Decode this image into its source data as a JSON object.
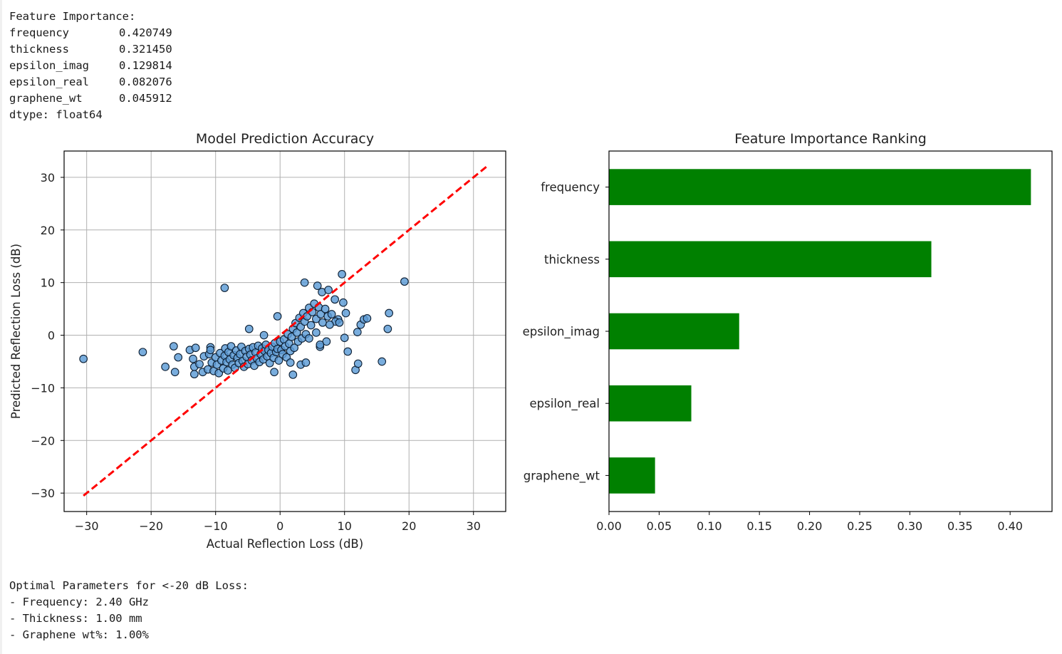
{
  "console_top": {
    "header": "Feature Importance:",
    "rows": [
      {
        "name": "frequency",
        "value": "0.420749"
      },
      {
        "name": "thickness",
        "value": "0.321450"
      },
      {
        "name": "epsilon_imag",
        "value": "0.129814"
      },
      {
        "name": "epsilon_real",
        "value": "0.082076"
      },
      {
        "name": "graphene_wt",
        "value": "0.045912"
      }
    ],
    "dtype": "dtype: float64"
  },
  "console_bottom": {
    "header": "Optimal Parameters for <-20 dB Loss:",
    "lines": [
      "- Frequency: 2.40 GHz",
      "- Thickness: 1.00 mm",
      "- Graphene wt%: 1.00%"
    ]
  },
  "colors": {
    "scatter_fill": "#5b9bd5",
    "scatter_edge": "#0d1f33",
    "diagonal": "#ff0000",
    "bar": "#008000",
    "grid": "#b0b0b0"
  },
  "chart_data": [
    {
      "type": "scatter",
      "title": "Model Prediction Accuracy",
      "xlabel": "Actual Reflection Loss (dB)",
      "ylabel": "Predicted Reflection Loss (dB)",
      "xlim": [
        -33.5,
        35
      ],
      "ylim": [
        -33.5,
        35
      ],
      "xticks": [
        -30,
        -20,
        -10,
        0,
        10,
        20,
        30
      ],
      "yticks": [
        -30,
        -20,
        -10,
        0,
        10,
        20,
        30
      ],
      "tick_labels": [
        "−30",
        "−20",
        "−10",
        "0",
        "10",
        "20",
        "30"
      ],
      "grid": true,
      "reference_line": {
        "from": [
          -30.5,
          -30.5
        ],
        "to": [
          32,
          32
        ],
        "style": "dashed"
      },
      "points": [
        [
          -30.5,
          -4.5
        ],
        [
          -21.3,
          -3.2
        ],
        [
          -17.8,
          -6
        ],
        [
          -16.5,
          -2.1
        ],
        [
          -16.3,
          -7
        ],
        [
          -15.8,
          -4.2
        ],
        [
          -14,
          -2.8
        ],
        [
          -13.5,
          -4.5
        ],
        [
          -13.3,
          -6
        ],
        [
          -13.3,
          -7.4
        ],
        [
          -13.1,
          -2.4
        ],
        [
          -12.5,
          -5.5
        ],
        [
          -12,
          -7
        ],
        [
          -11.8,
          -4
        ],
        [
          -11.2,
          -6.5
        ],
        [
          -11,
          -3.6
        ],
        [
          -10.6,
          -5.2
        ],
        [
          -10.3,
          -6.8
        ],
        [
          -10,
          -4.2
        ],
        [
          -10.8,
          -2.3
        ],
        [
          -10.8,
          -2.8
        ],
        [
          -9.8,
          -5.6
        ],
        [
          -9.5,
          -7.2
        ],
        [
          -9.3,
          -3.4
        ],
        [
          -9.1,
          -4.8
        ],
        [
          -8.8,
          -6.3
        ],
        [
          -8.6,
          -3.9
        ],
        [
          -8.5,
          -2.5
        ],
        [
          -8.3,
          -5.1
        ],
        [
          -8.1,
          -6.7
        ],
        [
          -8,
          -3.2
        ],
        [
          -7.8,
          -4.6
        ],
        [
          -7.6,
          -2.1
        ],
        [
          -7.4,
          -5.6
        ],
        [
          -7.2,
          -3.8
        ],
        [
          -7,
          -6.2
        ],
        [
          -6.8,
          -2.9
        ],
        [
          -6.6,
          -4.3
        ],
        [
          -6.4,
          -5.3
        ],
        [
          -6.2,
          -3.6
        ],
        [
          -6,
          -2.2
        ],
        [
          -5.8,
          -4.9
        ],
        [
          -5.6,
          -6
        ],
        [
          -5.4,
          -3
        ],
        [
          -5.2,
          -4.1
        ],
        [
          -5,
          -5.5
        ],
        [
          -4.8,
          -2.6
        ],
        [
          -4.6,
          -3.7
        ],
        [
          -4.4,
          -4.8
        ],
        [
          -4.2,
          -2.3
        ],
        [
          -4,
          -5.8
        ],
        [
          -3.8,
          -3.3
        ],
        [
          -3.6,
          -4.4
        ],
        [
          -3.4,
          -2
        ],
        [
          -3.2,
          -5.1
        ],
        [
          -3,
          -3.6
        ],
        [
          -2.8,
          -2.5
        ],
        [
          -2.6,
          -4.6
        ],
        [
          -2.4,
          -3
        ],
        [
          -2.2,
          -1.8
        ],
        [
          -2,
          -4
        ],
        [
          -1.8,
          -2.8
        ],
        [
          -1.6,
          -5.3
        ],
        [
          -1.4,
          -3.4
        ],
        [
          -1.2,
          -2.2
        ],
        [
          -1,
          -4.3
        ],
        [
          -0.8,
          -1.5
        ],
        [
          -0.6,
          -3.2
        ],
        [
          -0.4,
          -2.6
        ],
        [
          -0.2,
          -4.8
        ],
        [
          0,
          -1.2
        ],
        [
          0.2,
          -2.8
        ],
        [
          0.4,
          -3.6
        ],
        [
          0.6,
          -0.8
        ],
        [
          0.8,
          -2.1
        ],
        [
          1,
          -4.2
        ],
        [
          1.2,
          0.2
        ],
        [
          1.4,
          -1.6
        ],
        [
          1.6,
          -3
        ],
        [
          1.8,
          -0.3
        ],
        [
          2,
          1.2
        ],
        [
          2.2,
          -2.4
        ],
        [
          2.4,
          2.3
        ],
        [
          2.6,
          0.5
        ],
        [
          2.8,
          -1.2
        ],
        [
          3,
          3.3
        ],
        [
          3.2,
          1.6
        ],
        [
          3.4,
          -0.6
        ],
        [
          3.6,
          4.2
        ],
        [
          3.8,
          2.6
        ],
        [
          4,
          0.2
        ],
        [
          4.2,
          3.6
        ],
        [
          4.5,
          5.2
        ],
        [
          4.8,
          1.9
        ],
        [
          5,
          4.4
        ],
        [
          5.3,
          6
        ],
        [
          5.6,
          3.1
        ],
        [
          6,
          5.3
        ],
        [
          6.3,
          4
        ],
        [
          6.6,
          2.4
        ],
        [
          7,
          5
        ],
        [
          7.4,
          3.6
        ],
        [
          -8.6,
          9
        ],
        [
          -4.8,
          1.2
        ],
        [
          -2.5,
          0
        ],
        [
          -0.4,
          3.6
        ],
        [
          -0.9,
          -7
        ],
        [
          1.6,
          -5.2
        ],
        [
          2,
          -7.5
        ],
        [
          3.2,
          -5.6
        ],
        [
          4,
          -5.2
        ],
        [
          3.8,
          10
        ],
        [
          5.8,
          9.4
        ],
        [
          6.5,
          8.2
        ],
        [
          7.5,
          8.6
        ],
        [
          9.6,
          11.6
        ],
        [
          9.8,
          6.2
        ],
        [
          10.2,
          4.2
        ],
        [
          8.5,
          6.8
        ],
        [
          9,
          3
        ],
        [
          8.6,
          2.6
        ],
        [
          7.2,
          -1.2
        ],
        [
          6.2,
          -2.2
        ],
        [
          5.6,
          0.5
        ],
        [
          4.5,
          -0.6
        ],
        [
          6.2,
          -1.8
        ],
        [
          10.5,
          -3.1
        ],
        [
          11.7,
          -6.6
        ],
        [
          12.1,
          -5.4
        ],
        [
          12,
          0.6
        ],
        [
          12.5,
          2
        ],
        [
          13,
          3
        ],
        [
          13.5,
          3.2
        ],
        [
          15.8,
          -5
        ],
        [
          16.7,
          1.2
        ],
        [
          16.9,
          4.2
        ],
        [
          19.3,
          10.2
        ],
        [
          9.2,
          2.4
        ],
        [
          10,
          -0.5
        ],
        [
          8,
          4
        ],
        [
          7.7,
          2
        ]
      ]
    },
    {
      "type": "bar",
      "orientation": "horizontal",
      "title": "Feature Importance Ranking",
      "categories": [
        "frequency",
        "thickness",
        "epsilon_imag",
        "epsilon_real",
        "graphene_wt"
      ],
      "values": [
        0.420749,
        0.32145,
        0.129814,
        0.082076,
        0.045912
      ],
      "xlim": [
        0,
        0.4418
      ],
      "xticks": [
        "0.00",
        "0.05",
        "0.10",
        "0.15",
        "0.20",
        "0.25",
        "0.30",
        "0.35",
        "0.40"
      ],
      "grid": false
    }
  ]
}
